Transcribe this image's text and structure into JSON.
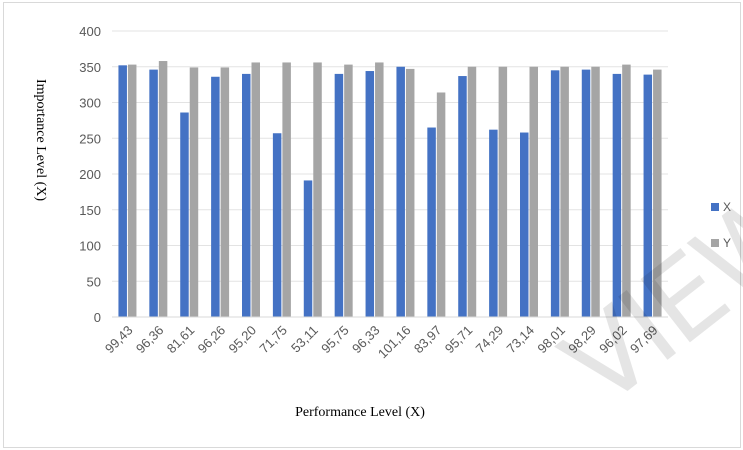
{
  "chart_data": {
    "type": "bar",
    "title": "",
    "xlabel": "Performance Level (X)",
    "ylabel": "Importance Level (X)",
    "categories": [
      "99,43",
      "96,36",
      "81,61",
      "96,26",
      "95,20",
      "71,75",
      "53,11",
      "95,75",
      "96,33",
      "101,16",
      "83,97",
      "95,71",
      "74,29",
      "73,14",
      "98,01",
      "98,29",
      "96,02",
      "97,69"
    ],
    "series": [
      {
        "name": "X",
        "color": "#4472c4",
        "values": [
          352,
          346,
          286,
          336,
          340,
          257,
          191,
          340,
          344,
          350,
          265,
          337,
          262,
          258,
          345,
          346,
          340,
          339
        ]
      },
      {
        "name": "Y",
        "color": "#a5a5a5",
        "values": [
          353,
          358,
          349,
          349,
          356,
          356,
          356,
          353,
          356,
          347,
          314,
          350,
          350,
          350,
          350,
          350,
          353,
          346
        ]
      }
    ],
    "ylim": [
      0,
      400
    ],
    "yticks": [
      0,
      50,
      100,
      150,
      200,
      250,
      300,
      350,
      400
    ],
    "grid": true,
    "legend_position": "right"
  },
  "watermark": {
    "text": "VIEW"
  }
}
